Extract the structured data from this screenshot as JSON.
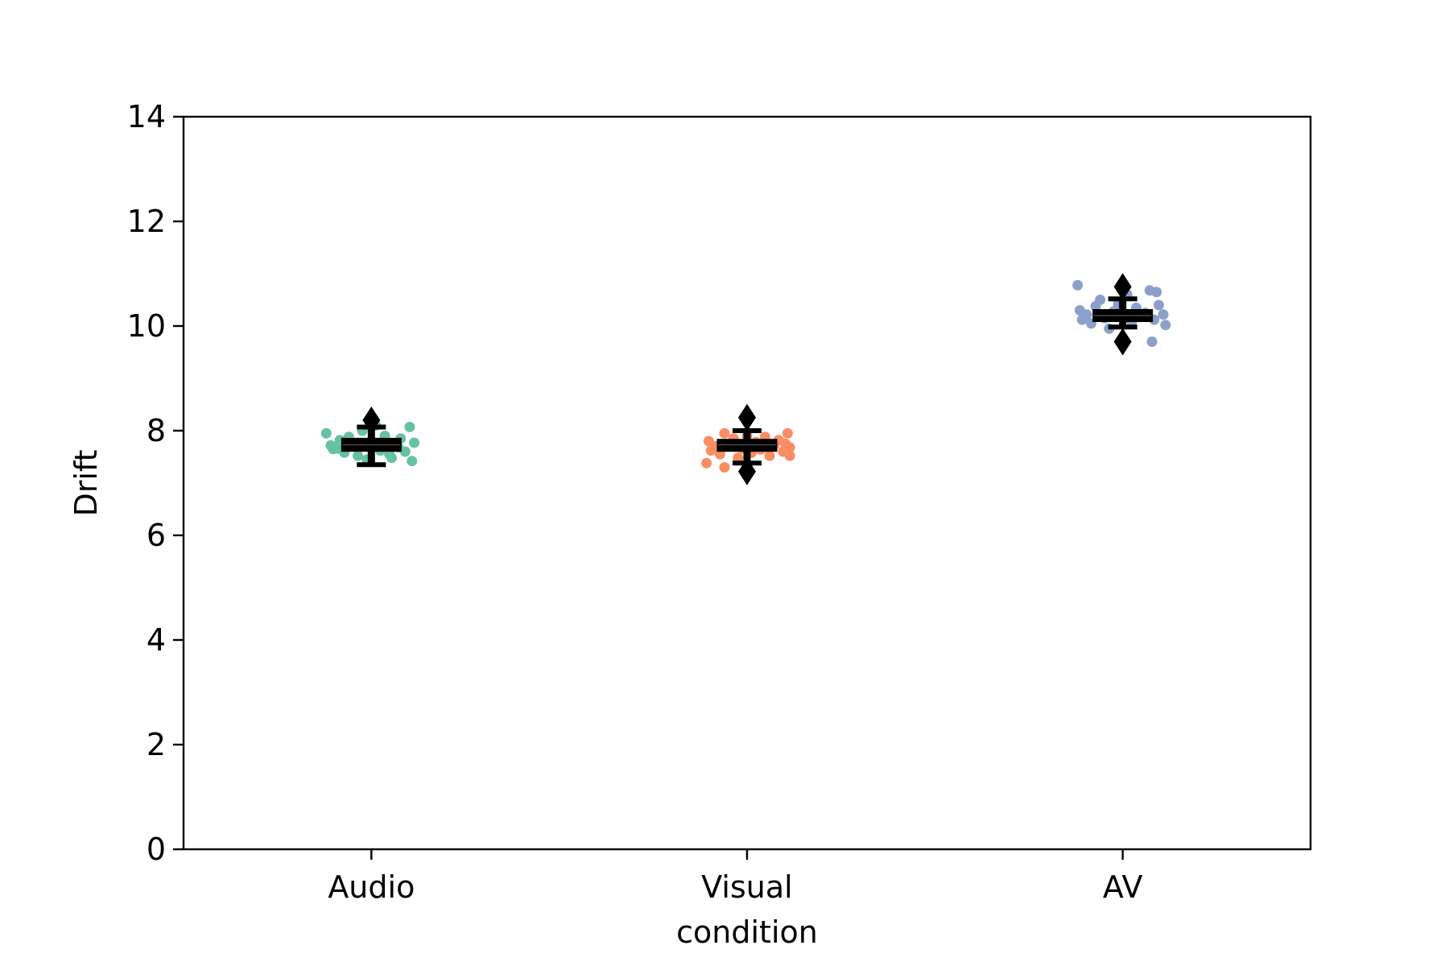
{
  "chart_data": {
    "type": "box",
    "xlabel": "condition",
    "ylabel": "Drift",
    "ylim": [
      0,
      14
    ],
    "yticks": [
      0,
      2,
      4,
      6,
      8,
      10,
      12,
      14
    ],
    "categories": [
      "Audio",
      "Visual",
      "AV"
    ],
    "grid": false,
    "groups": [
      {
        "name": "Audio",
        "color": "#66c2a5",
        "box": {
          "whisker_low": 7.35,
          "q1": 7.62,
          "median": 7.73,
          "q3": 7.84,
          "whisker_high": 8.07
        },
        "outliers": [
          8.2
        ],
        "points": [
          {
            "dx": -0.1,
            "y": 7.95
          },
          {
            "dx": -0.09,
            "y": 7.72
          },
          {
            "dx": -0.085,
            "y": 7.65
          },
          {
            "dx": -0.07,
            "y": 7.82
          },
          {
            "dx": -0.06,
            "y": 7.58
          },
          {
            "dx": -0.05,
            "y": 7.88
          },
          {
            "dx": -0.04,
            "y": 7.7
          },
          {
            "dx": -0.03,
            "y": 7.52
          },
          {
            "dx": -0.02,
            "y": 8.0
          },
          {
            "dx": -0.01,
            "y": 7.45
          },
          {
            "dx": 0.0,
            "y": 7.8
          },
          {
            "dx": 0.01,
            "y": 8.1
          },
          {
            "dx": 0.02,
            "y": 7.62
          },
          {
            "dx": 0.03,
            "y": 7.9
          },
          {
            "dx": 0.04,
            "y": 7.55
          },
          {
            "dx": 0.05,
            "y": 7.75
          },
          {
            "dx": 0.06,
            "y": 7.68
          },
          {
            "dx": 0.065,
            "y": 7.85
          },
          {
            "dx": 0.075,
            "y": 7.6
          },
          {
            "dx": 0.085,
            "y": 8.07
          },
          {
            "dx": 0.09,
            "y": 7.42
          },
          {
            "dx": 0.095,
            "y": 7.77
          },
          {
            "dx": -0.075,
            "y": 7.66
          },
          {
            "dx": 0.045,
            "y": 7.48
          }
        ]
      },
      {
        "name": "Visual",
        "color": "#fc8d62",
        "box": {
          "whisker_low": 7.38,
          "q1": 7.62,
          "median": 7.73,
          "q3": 7.82,
          "whisker_high": 8.0
        },
        "outliers": [
          7.22,
          8.25
        ],
        "points": [
          {
            "dx": -0.09,
            "y": 7.38
          },
          {
            "dx": -0.085,
            "y": 7.8
          },
          {
            "dx": -0.08,
            "y": 7.62
          },
          {
            "dx": -0.07,
            "y": 7.7
          },
          {
            "dx": -0.06,
            "y": 7.55
          },
          {
            "dx": -0.05,
            "y": 7.95
          },
          {
            "dx": -0.05,
            "y": 7.3
          },
          {
            "dx": -0.04,
            "y": 7.74
          },
          {
            "dx": -0.03,
            "y": 7.85
          },
          {
            "dx": -0.02,
            "y": 7.48
          },
          {
            "dx": -0.01,
            "y": 7.66
          },
          {
            "dx": 0.0,
            "y": 7.9
          },
          {
            "dx": 0.01,
            "y": 7.58
          },
          {
            "dx": 0.02,
            "y": 7.78
          },
          {
            "dx": 0.03,
            "y": 7.64
          },
          {
            "dx": 0.04,
            "y": 7.88
          },
          {
            "dx": 0.05,
            "y": 7.52
          },
          {
            "dx": 0.06,
            "y": 7.72
          },
          {
            "dx": 0.07,
            "y": 7.82
          },
          {
            "dx": 0.08,
            "y": 7.6
          },
          {
            "dx": 0.085,
            "y": 7.75
          },
          {
            "dx": 0.09,
            "y": 7.95
          },
          {
            "dx": 0.095,
            "y": 7.68
          },
          {
            "dx": 0.095,
            "y": 7.52
          }
        ]
      },
      {
        "name": "AV",
        "color": "#8da0cb",
        "box": {
          "whisker_low": 9.98,
          "q1": 10.1,
          "median": 10.2,
          "q3": 10.3,
          "whisker_high": 10.52
        },
        "outliers": [
          9.7,
          10.75
        ],
        "points": [
          {
            "dx": -0.1,
            "y": 10.78
          },
          {
            "dx": -0.095,
            "y": 10.3
          },
          {
            "dx": -0.09,
            "y": 10.12
          },
          {
            "dx": -0.08,
            "y": 10.22
          },
          {
            "dx": -0.07,
            "y": 10.05
          },
          {
            "dx": -0.06,
            "y": 10.38
          },
          {
            "dx": -0.05,
            "y": 10.5
          },
          {
            "dx": -0.04,
            "y": 10.15
          },
          {
            "dx": -0.03,
            "y": 9.95
          },
          {
            "dx": -0.02,
            "y": 10.28
          },
          {
            "dx": -0.01,
            "y": 10.42
          },
          {
            "dx": 0.0,
            "y": 10.2
          },
          {
            "dx": 0.01,
            "y": 10.6
          },
          {
            "dx": 0.02,
            "y": 10.08
          },
          {
            "dx": 0.03,
            "y": 10.35
          },
          {
            "dx": 0.04,
            "y": 10.18
          },
          {
            "dx": 0.05,
            "y": 10.25
          },
          {
            "dx": 0.06,
            "y": 10.68
          },
          {
            "dx": 0.065,
            "y": 9.7
          },
          {
            "dx": 0.07,
            "y": 10.12
          },
          {
            "dx": 0.075,
            "y": 10.65
          },
          {
            "dx": 0.08,
            "y": 10.4
          },
          {
            "dx": 0.09,
            "y": 10.22
          },
          {
            "dx": 0.095,
            "y": 10.02
          }
        ]
      }
    ]
  }
}
